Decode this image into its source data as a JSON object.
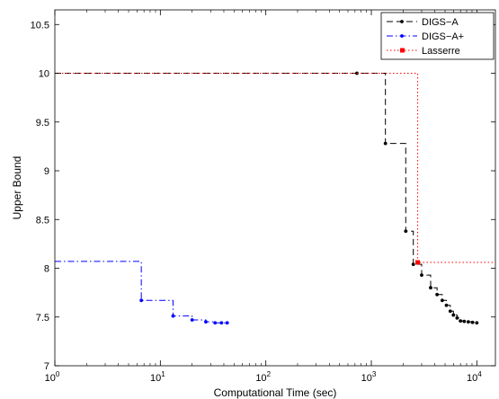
{
  "chart_data": {
    "type": "line",
    "xscale": "log",
    "xlim": [
      1,
      15000
    ],
    "ylim": [
      7,
      10.65
    ],
    "xlabel": "Computational Time (sec)",
    "ylabel": "Upper Bound",
    "x_ticks": [
      {
        "value": 1,
        "base": "10",
        "exp": "0"
      },
      {
        "value": 10,
        "base": "10",
        "exp": "1"
      },
      {
        "value": 100,
        "base": "10",
        "exp": "2"
      },
      {
        "value": 1000,
        "base": "10",
        "exp": "3"
      },
      {
        "value": 10000,
        "base": "10",
        "exp": "4"
      }
    ],
    "y_ticks": [
      {
        "value": 7,
        "label": "7"
      },
      {
        "value": 7.5,
        "label": "7.5"
      },
      {
        "value": 8,
        "label": "8"
      },
      {
        "value": 8.5,
        "label": "8.5"
      },
      {
        "value": 9,
        "label": "9"
      },
      {
        "value": 9.5,
        "label": "9.5"
      },
      {
        "value": 10,
        "label": "10"
      },
      {
        "value": 10.5,
        "label": "10.5"
      }
    ],
    "grid": false,
    "legend_position": "top-right",
    "series": [
      {
        "name": "DIGS−A",
        "color": "#000000",
        "dash": "7,4",
        "marker": "dot",
        "step_from": [
          1,
          10.0
        ],
        "markers": [
          [
            730,
            10.0
          ],
          [
            1360,
            9.28
          ],
          [
            2120,
            8.38
          ],
          [
            2500,
            8.04
          ],
          [
            3000,
            7.93
          ],
          [
            3650,
            7.8
          ],
          [
            4200,
            7.73
          ],
          [
            4700,
            7.67
          ],
          [
            5150,
            7.62
          ],
          [
            5600,
            7.56
          ],
          [
            6000,
            7.52
          ],
          [
            6500,
            7.49
          ],
          [
            7000,
            7.46
          ],
          [
            7600,
            7.455
          ],
          [
            8300,
            7.45
          ],
          [
            9100,
            7.445
          ],
          [
            10000,
            7.44
          ]
        ]
      },
      {
        "name": "DIGS−A+",
        "color": "#0000ff",
        "dash": "7,3,1.5,3",
        "marker": "dot",
        "step_from": [
          1,
          8.07
        ],
        "markers": [
          [
            6.6,
            7.67
          ],
          [
            13.2,
            7.51
          ],
          [
            20,
            7.47
          ],
          [
            27,
            7.45
          ],
          [
            33,
            7.44
          ],
          [
            38,
            7.44
          ],
          [
            43,
            7.44
          ]
        ]
      },
      {
        "name": "Lasserre",
        "color": "#ff0000",
        "dash": "1.5,2.5",
        "marker": "square",
        "step_from": [
          1,
          10.0
        ],
        "markers": [
          [
            2750,
            8.06
          ]
        ],
        "extend_to": 15000
      }
    ]
  }
}
